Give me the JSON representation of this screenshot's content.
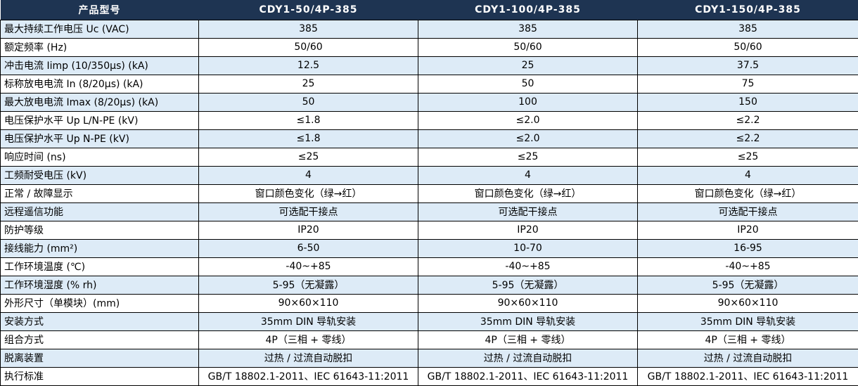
{
  "colors": {
    "header_bg": "#1e3452",
    "header_text": "#ffffff",
    "row_alt_bg": "#ddebf7",
    "row_bg": "#ffffff",
    "border": "#000000",
    "text": "#000000"
  },
  "table": {
    "header": [
      "产品型号",
      "CDY1-50/4P-385",
      "CDY1-100/4P-385",
      "CDY1-150/4P-385"
    ],
    "rows": [
      {
        "label": "最大持续工作电压 Uc (VAC)",
        "values": [
          "385",
          "385",
          "385"
        ]
      },
      {
        "label": "额定频率 (Hz)",
        "values": [
          "50/60",
          "50/60",
          "50/60"
        ]
      },
      {
        "label": "冲击电流 Iimp (10/350μs) (kA)",
        "values": [
          "12.5",
          "25",
          "37.5"
        ]
      },
      {
        "label": "标称放电电流 In (8/20μs) (kA)",
        "values": [
          "25",
          "50",
          "75"
        ]
      },
      {
        "label": "最大放电电流 Imax (8/20μs) (kA)",
        "values": [
          "50",
          "100",
          "150"
        ]
      },
      {
        "label": "电压保护水平 Up L/N-PE (kV)",
        "values": [
          "≤1.8",
          "≤2.0",
          "≤2.2"
        ]
      },
      {
        "label": "电压保护水平 Up N-PE (kV)",
        "values": [
          "≤1.8",
          "≤2.0",
          "≤2.2"
        ]
      },
      {
        "label": "响应时间 (ns)",
        "values": [
          "≤25",
          "≤25",
          "≤25"
        ]
      },
      {
        "label": "工频耐受电压 (kV)",
        "values": [
          "4",
          "4",
          "4"
        ]
      },
      {
        "label": "正常 / 故障显示",
        "values": [
          "窗口颜色变化（绿→红）",
          "窗口颜色变化（绿→红）",
          "窗口颜色变化（绿→红）"
        ]
      },
      {
        "label": "远程遥信功能",
        "values": [
          "可选配干接点",
          "可选配干接点",
          "可选配干接点"
        ]
      },
      {
        "label": "防护等级",
        "values": [
          "IP20",
          "IP20",
          "IP20"
        ]
      },
      {
        "label": "接线能力 (mm²)",
        "values": [
          "6-50",
          "10-70",
          "16-95"
        ]
      },
      {
        "label": "工作环境温度 (℃)",
        "values": [
          "-40~+85",
          "-40~+85",
          "-40~+85"
        ]
      },
      {
        "label": "工作环境湿度 (% rh)",
        "values": [
          "5-95（无凝露）",
          "5-95（无凝露）",
          "5-95（无凝露）"
        ]
      },
      {
        "label": "外形尺寸（单模块）(mm)",
        "values": [
          "90×60×110",
          "90×60×110",
          "90×60×110"
        ]
      },
      {
        "label": "安装方式",
        "values": [
          "35mm DIN 导轨安装",
          "35mm DIN 导轨安装",
          "35mm DIN 导轨安装"
        ]
      },
      {
        "label": "组合方式",
        "values": [
          "4P（三相 + 零线）",
          "4P（三相 + 零线）",
          "4P（三相 + 零线）"
        ]
      },
      {
        "label": "脱离装置",
        "values": [
          "过热 / 过流自动脱扣",
          "过热 / 过流自动脱扣",
          "过热 / 过流自动脱扣"
        ]
      },
      {
        "label": "执行标准",
        "values": [
          "GB/T 18802.1-2011、IEC 61643-11:2011",
          "GB/T 18802.1-2011、IEC 61643-11:2011",
          "GB/T 18802.1-2011、IEC 61643-11:2011"
        ]
      }
    ]
  }
}
